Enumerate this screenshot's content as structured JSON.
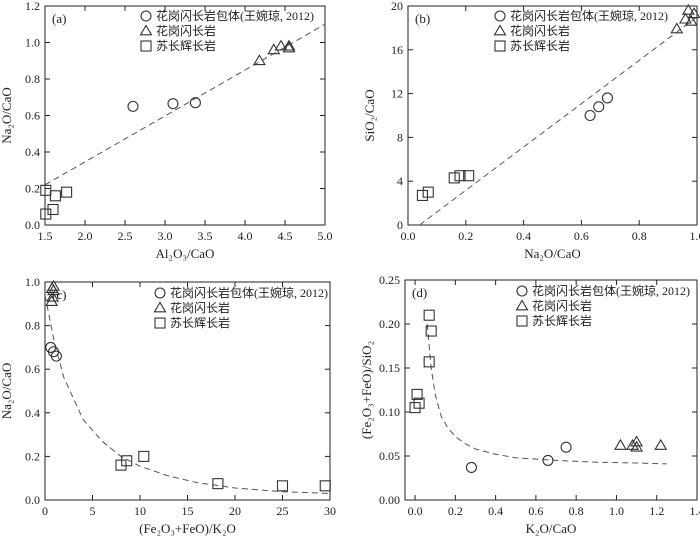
{
  "chart_data": [
    {
      "type": "scatter",
      "panel_label": "(a)",
      "xlabel": "Al₂O₃/CaO",
      "ylabel": "Na₂O/CaO",
      "xlim": [
        1.5,
        5.0
      ],
      "ylim": [
        0.0,
        1.2
      ],
      "xticks": [
        1.5,
        2.0,
        2.5,
        3.0,
        3.5,
        4.0,
        4.5,
        5.0
      ],
      "xtick_labels": [
        "1.5",
        "2.0",
        "2.5",
        "3.0",
        "3.5",
        "4.0",
        "4.5",
        "5.0"
      ],
      "yticks": [
        0.0,
        0.2,
        0.4,
        0.6,
        0.8,
        1.0,
        1.2
      ],
      "ytick_labels": [
        "0.0",
        "0.2",
        "0.4",
        "0.6",
        "0.8",
        "1.0",
        "1.2"
      ],
      "legend": "top-left",
      "trend": {
        "style": "dashed",
        "x": [
          1.5,
          5.0
        ],
        "y": [
          0.22,
          1.1
        ]
      },
      "series": [
        {
          "name": "花岗闪长岩包体(王婉琼, 2012)",
          "marker": "circle",
          "x": [
            2.6,
            3.1,
            3.38
          ],
          "y": [
            0.65,
            0.665,
            0.67
          ]
        },
        {
          "name": "花岗闪长岩",
          "marker": "triangle",
          "x": [
            4.18,
            4.36,
            4.45,
            4.55,
            4.55
          ],
          "y": [
            0.9,
            0.96,
            0.98,
            0.97,
            0.98
          ]
        },
        {
          "name": "苏长辉长岩",
          "marker": "square",
          "x": [
            1.51,
            1.6,
            1.63,
            1.77,
            1.51
          ],
          "y": [
            0.19,
            0.085,
            0.16,
            0.18,
            0.06
          ]
        }
      ]
    },
    {
      "type": "scatter",
      "panel_label": "(b)",
      "xlabel": "Na₂O/CaO",
      "ylabel": "SiO₂/CaO",
      "xlim": [
        0.0,
        1.0
      ],
      "ylim": [
        0,
        20
      ],
      "xticks": [
        0.0,
        0.2,
        0.4,
        0.6,
        0.8,
        1.0
      ],
      "xtick_labels": [
        "0.0",
        "0.2",
        "0.4",
        "0.6",
        "0.8",
        "1.0"
      ],
      "yticks": [
        0,
        4,
        8,
        12,
        16,
        20
      ],
      "ytick_labels": [
        "0",
        "4",
        "8",
        "12",
        "16",
        "20"
      ],
      "legend": "top-left",
      "trend": {
        "style": "dashed",
        "x": [
          0.04,
          1.0
        ],
        "y": [
          0.0,
          19.0
        ]
      },
      "series": [
        {
          "name": "花岗闪长岩包体(王婉琼, 2012)",
          "marker": "circle",
          "x": [
            0.63,
            0.66,
            0.69
          ],
          "y": [
            10.0,
            10.8,
            11.6
          ]
        },
        {
          "name": "花岗闪长岩",
          "marker": "triangle",
          "x": [
            0.93,
            0.96,
            0.97,
            0.99,
            0.98
          ],
          "y": [
            17.9,
            18.8,
            19.6,
            19.3,
            18.6
          ]
        },
        {
          "name": "苏长辉长岩",
          "marker": "square",
          "x": [
            0.05,
            0.07,
            0.16,
            0.18,
            0.21
          ],
          "y": [
            2.7,
            3.0,
            4.3,
            4.5,
            4.5
          ]
        }
      ]
    },
    {
      "type": "scatter",
      "panel_label": "(c)",
      "xlabel": "(Fe₂O₃+FeO)/K₂O",
      "ylabel": "Na₂O/CaO",
      "xlim": [
        0,
        30
      ],
      "ylim": [
        0.0,
        1.0
      ],
      "xticks": [
        0,
        5,
        10,
        15,
        20,
        25,
        30
      ],
      "xtick_labels": [
        "0",
        "5",
        "10",
        "15",
        "20",
        "25",
        "30"
      ],
      "yticks": [
        0.0,
        0.2,
        0.4,
        0.6,
        0.8,
        1.0
      ],
      "ytick_labels": [
        "0.0",
        "0.2",
        "0.4",
        "0.6",
        "0.8",
        "1.0"
      ],
      "legend": "top-right",
      "trend": {
        "style": "dashed",
        "curve": "decay",
        "x": [
          0,
          1,
          2,
          4,
          6,
          8,
          10,
          13,
          16,
          20,
          25,
          30
        ],
        "y": [
          0.94,
          0.72,
          0.56,
          0.37,
          0.27,
          0.2,
          0.155,
          0.11,
          0.08,
          0.055,
          0.038,
          0.03
        ]
      },
      "series": [
        {
          "name": "花岗闪长岩包体(王婉琼, 2012)",
          "marker": "circle",
          "x": [
            0.6,
            0.9,
            1.2
          ],
          "y": [
            0.7,
            0.68,
            0.66
          ]
        },
        {
          "name": "花岗闪长岩",
          "marker": "triangle",
          "x": [
            0.7,
            0.8,
            0.9,
            0.9,
            0.75
          ],
          "y": [
            0.91,
            0.93,
            0.96,
            0.98,
            0.97
          ]
        },
        {
          "name": "苏长辉长岩",
          "marker": "square",
          "x": [
            8.0,
            8.6,
            10.4,
            18.2,
            25.0,
            29.5
          ],
          "y": [
            0.16,
            0.18,
            0.2,
            0.075,
            0.065,
            0.065
          ]
        }
      ]
    },
    {
      "type": "scatter",
      "panel_label": "(d)",
      "xlabel": "K₂O/CaO",
      "ylabel": "(Fe₂O₃+FeO)/SiO₂",
      "xlim": [
        -0.05,
        1.4
      ],
      "ylim": [
        0.0,
        0.25
      ],
      "xticks": [
        0.0,
        0.2,
        0.4,
        0.6,
        0.8,
        1.0,
        1.2,
        1.4
      ],
      "xtick_labels": [
        "0.0",
        "0.2",
        "0.4",
        "0.6",
        "0.8",
        "1.0",
        "1.2",
        "1.4"
      ],
      "yticks": [
        0.0,
        0.05,
        0.1,
        0.15,
        0.2,
        0.25
      ],
      "ytick_labels": [
        "0.00",
        "0.05",
        "0.10",
        "0.15",
        "0.20",
        "0.25"
      ],
      "legend": "top-right",
      "trend": {
        "style": "dashed",
        "curve": "decay",
        "x": [
          0.06,
          0.08,
          0.1,
          0.13,
          0.16,
          0.2,
          0.25,
          0.3,
          0.4,
          0.5,
          0.7,
          0.9,
          1.1,
          1.25
        ],
        "y": [
          0.2,
          0.15,
          0.12,
          0.095,
          0.083,
          0.072,
          0.064,
          0.058,
          0.052,
          0.048,
          0.045,
          0.043,
          0.042,
          0.041
        ]
      },
      "series": [
        {
          "name": "花岗闪长岩包体(王婉琼, 2012)",
          "marker": "circle",
          "x": [
            0.28,
            0.66,
            0.75
          ],
          "y": [
            0.037,
            0.045,
            0.06
          ]
        },
        {
          "name": "花岗闪长岩",
          "marker": "triangle",
          "x": [
            1.02,
            1.08,
            1.1,
            1.1,
            1.22
          ],
          "y": [
            0.062,
            0.062,
            0.066,
            0.06,
            0.062
          ]
        },
        {
          "name": "苏长辉长岩",
          "marker": "square",
          "x": [
            0.0,
            0.01,
            0.02,
            0.07,
            0.07,
            0.08
          ],
          "y": [
            0.105,
            0.12,
            0.11,
            0.157,
            0.21,
            0.192
          ]
        }
      ]
    }
  ]
}
